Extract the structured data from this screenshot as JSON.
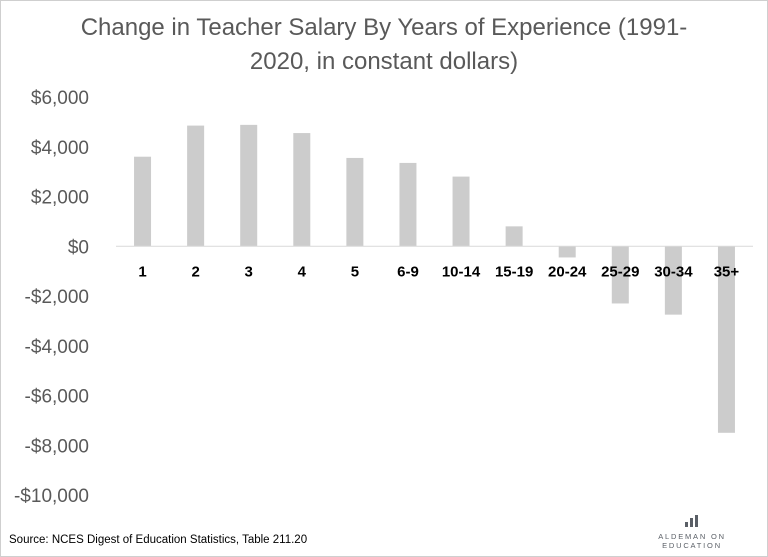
{
  "chart_data": {
    "type": "bar",
    "title": "Change in Teacher Salary By Years of Experience (1991-2020, in constant dollars)",
    "title_lines": [
      "Change in Teacher Salary By Years of Experience (1991-",
      "2020, in constant dollars)"
    ],
    "xlabel": "",
    "ylabel": "",
    "categories": [
      "1",
      "2",
      "3",
      "4",
      "5",
      "6-9",
      "10-14",
      "15-19",
      "20-24",
      "25-29",
      "30-34",
      "35+"
    ],
    "values": [
      3600,
      4850,
      4880,
      4550,
      3550,
      3350,
      2800,
      800,
      -450,
      -2300,
      -2750,
      -7500
    ],
    "ylim": [
      -10000,
      6000
    ],
    "yticks": [
      6000,
      4000,
      2000,
      0,
      -2000,
      -4000,
      -6000,
      -8000,
      -10000
    ],
    "ytick_labels": [
      "$6,000",
      "$4,000",
      "$2,000",
      "$0",
      "-$2,000",
      "-$4,000",
      "-$6,000",
      "-$8,000",
      "-$10,000"
    ],
    "bar_color": "#cccccc",
    "grid": false,
    "legend": "none"
  },
  "source": "Source: NCES Digest of Education Statistics, Table 211.20",
  "branding": {
    "name": "ALDEMAN ON EDUCATION",
    "logo_icon": "bar-chart-icon",
    "logo_color": "#5a5f66"
  }
}
